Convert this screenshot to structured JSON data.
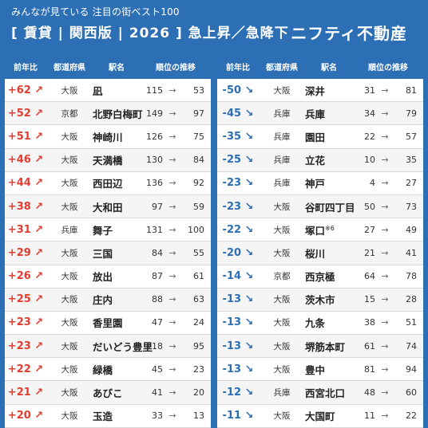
{
  "header": {
    "subtitle": "みんなが見ている 注目の街ベスト100",
    "title": "[ 賃貸 | 関西版 | 2026 ]   急上昇／急降下",
    "logo": "ニフティ不動産"
  },
  "columns": [
    "前年比",
    "都道府県",
    "駅名",
    "順位の推移"
  ],
  "arrow": "→",
  "colors": {
    "background": "#2d6fb5",
    "up": "#e23c2f",
    "down": "#2d6fb5"
  },
  "rising": [
    {
      "change": "+62 ↗",
      "pref": "大阪",
      "station": "凪",
      "from": "115",
      "to": "53"
    },
    {
      "change": "+52 ↗",
      "pref": "京都",
      "station": "北野白梅町",
      "from": "149",
      "to": "97"
    },
    {
      "change": "+51 ↗",
      "pref": "大阪",
      "station": "神崎川",
      "from": "126",
      "to": "75"
    },
    {
      "change": "+46 ↗",
      "pref": "大阪",
      "station": "天満橋",
      "from": "130",
      "to": "84"
    },
    {
      "change": "+44 ↗",
      "pref": "大阪",
      "station": "西田辺",
      "from": "136",
      "to": "92"
    },
    {
      "change": "+38 ↗",
      "pref": "大阪",
      "station": "大和田",
      "from": "97",
      "to": "59"
    },
    {
      "change": "+31 ↗",
      "pref": "兵庫",
      "station": "舞子",
      "from": "131",
      "to": "100"
    },
    {
      "change": "+29 ↗",
      "pref": "大阪",
      "station": "三国",
      "from": "84",
      "to": "55"
    },
    {
      "change": "+26 ↗",
      "pref": "大阪",
      "station": "放出",
      "from": "87",
      "to": "61"
    },
    {
      "change": "+25 ↗",
      "pref": "大阪",
      "station": "庄内",
      "from": "88",
      "to": "63"
    },
    {
      "change": "+23 ↗",
      "pref": "大阪",
      "station": "香里園",
      "from": "47",
      "to": "24"
    },
    {
      "change": "+23 ↗",
      "pref": "大阪",
      "station": "だいどう豊里",
      "from": "118",
      "to": "95"
    },
    {
      "change": "+22 ↗",
      "pref": "大阪",
      "station": "緑橋",
      "from": "45",
      "to": "23"
    },
    {
      "change": "+21 ↗",
      "pref": "大阪",
      "station": "あびこ",
      "from": "41",
      "to": "20"
    },
    {
      "change": "+20 ↗",
      "pref": "大阪",
      "station": "玉造",
      "from": "33",
      "to": "13"
    }
  ],
  "falling": [
    {
      "change": "-50 ↘",
      "pref": "大阪",
      "station": "深井",
      "from": "31",
      "to": "81"
    },
    {
      "change": "-45 ↘",
      "pref": "兵庫",
      "station": "兵庫",
      "from": "34",
      "to": "79"
    },
    {
      "change": "-35 ↘",
      "pref": "兵庫",
      "station": "園田",
      "from": "22",
      "to": "57"
    },
    {
      "change": "-25 ↘",
      "pref": "兵庫",
      "station": "立花",
      "from": "10",
      "to": "35"
    },
    {
      "change": "-23 ↘",
      "pref": "兵庫",
      "station": "神戸",
      "from": "4",
      "to": "27"
    },
    {
      "change": "-23 ↘",
      "pref": "大阪",
      "station": "谷町四丁目",
      "from": "50",
      "to": "73"
    },
    {
      "change": "-22 ↘",
      "pref": "大阪",
      "station": "塚口",
      "note": "※6",
      "from": "27",
      "to": "49"
    },
    {
      "change": "-20 ↘",
      "pref": "大阪",
      "station": "桜川",
      "from": "21",
      "to": "41"
    },
    {
      "change": "-14 ↘",
      "pref": "京都",
      "station": "西京極",
      "from": "64",
      "to": "78"
    },
    {
      "change": "-13 ↘",
      "pref": "大阪",
      "station": "茨木市",
      "from": "15",
      "to": "28"
    },
    {
      "change": "-13 ↘",
      "pref": "大阪",
      "station": "九条",
      "from": "38",
      "to": "51"
    },
    {
      "change": "-13 ↘",
      "pref": "大阪",
      "station": "堺筋本町",
      "from": "61",
      "to": "74"
    },
    {
      "change": "-13 ↘",
      "pref": "大阪",
      "station": "豊中",
      "from": "81",
      "to": "94"
    },
    {
      "change": "-12 ↘",
      "pref": "兵庫",
      "station": "西宮北口",
      "from": "48",
      "to": "60"
    },
    {
      "change": "-11 ↘",
      "pref": "大阪",
      "station": "大国町",
      "from": "11",
      "to": "22"
    }
  ]
}
